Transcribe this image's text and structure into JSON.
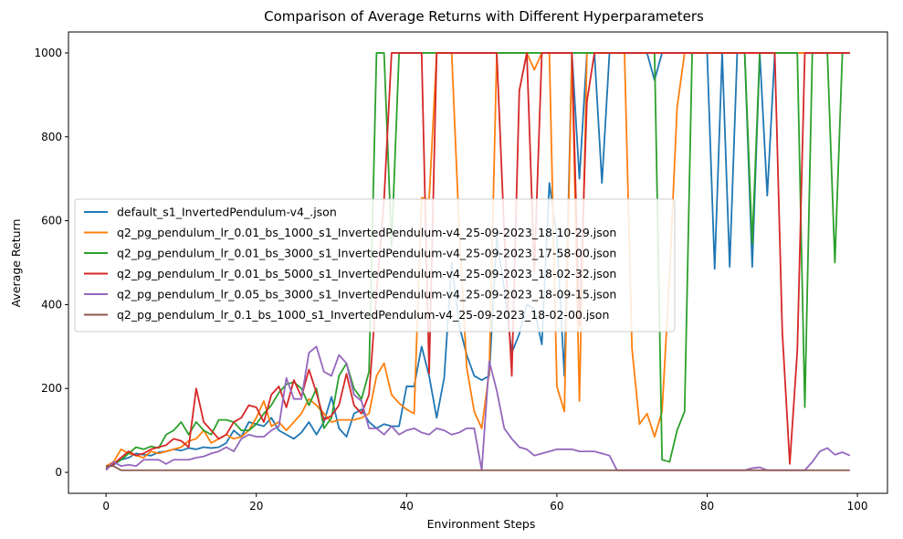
{
  "chart_data": {
    "type": "line",
    "title": "Comparison of Average Returns with Different Hyperparameters",
    "xlabel": "Environment Steps",
    "ylabel": "Average Return",
    "xlim": [
      -5,
      104
    ],
    "ylim": [
      -50,
      1050
    ],
    "xticks": [
      0,
      20,
      40,
      60,
      80,
      100
    ],
    "yticks": [
      0,
      200,
      400,
      600,
      800,
      1000
    ],
    "grid": false,
    "legend_position": "center-left",
    "colors": [
      "#1f77b4",
      "#ff7f0e",
      "#2ca02c",
      "#d62728",
      "#9467bd",
      "#8c564b"
    ],
    "series": [
      {
        "name": "default_s1_InvertedPendulum-v4_.json",
        "values": [
          12,
          18,
          30,
          35,
          45,
          42,
          40,
          48,
          50,
          55,
          52,
          58,
          55,
          60,
          58,
          60,
          70,
          100,
          85,
          120,
          115,
          110,
          130,
          100,
          90,
          80,
          95,
          120,
          90,
          120,
          180,
          105,
          85,
          140,
          150,
          120,
          105,
          115,
          110,
          110,
          205,
          205,
          300,
          230,
          130,
          225,
          500,
          350,
          280,
          230,
          220,
          230,
          560,
          435,
          285,
          330,
          400,
          390,
          305,
          690,
          560,
          230,
          1000,
          700,
          1000,
          1000,
          690,
          1000,
          1000,
          1000,
          1000,
          1000,
          1000,
          935,
          1000,
          1000,
          1000,
          1000,
          1000,
          1000,
          1000,
          485,
          1000,
          490,
          1000,
          1000,
          490,
          1000,
          660,
          1000,
          1000,
          1000,
          1000,
          1000,
          1000,
          1000,
          1000,
          1000,
          1000,
          1000
        ]
      },
      {
        "name": "q2_pg_pendulum_lr_0.01_bs_1000_s1_InvertedPendulum-v4_25-09-2023_18-10-29.json",
        "values": [
          15,
          25,
          55,
          45,
          40,
          35,
          50,
          45,
          50,
          55,
          60,
          75,
          80,
          100,
          70,
          80,
          90,
          80,
          85,
          100,
          130,
          170,
          110,
          120,
          100,
          120,
          140,
          175,
          160,
          140,
          120,
          125,
          125,
          125,
          130,
          140,
          230,
          260,
          185,
          165,
          150,
          140,
          655,
          650,
          1000,
          1000,
          1000,
          580,
          250,
          145,
          105,
          240,
          1000,
          1000,
          1000,
          1000,
          1000,
          960,
          1000,
          1000,
          205,
          145,
          1000,
          170,
          1000,
          1000,
          1000,
          1000,
          1000,
          1000,
          295,
          115,
          140,
          85,
          145,
          470,
          870,
          1000,
          1000,
          1000,
          1000,
          1000,
          1000,
          1000,
          1000,
          1000,
          1000,
          1000,
          1000,
          1000,
          1000,
          1000,
          1000,
          1000,
          1000,
          1000,
          1000,
          1000,
          1000,
          1000
        ]
      },
      {
        "name": "q2_pg_pendulum_lr_0.01_bs_3000_s1_InvertedPendulum-v4_25-09-2023_17-58-00.json",
        "values": [
          10,
          20,
          30,
          45,
          60,
          55,
          62,
          58,
          90,
          100,
          120,
          90,
          120,
          100,
          90,
          125,
          125,
          120,
          100,
          100,
          115,
          140,
          160,
          190,
          210,
          215,
          200,
          160,
          200,
          105,
          130,
          230,
          260,
          200,
          175,
          240,
          1000,
          1000,
          540,
          1000,
          1000,
          1000,
          1000,
          1000,
          1000,
          1000,
          1000,
          1000,
          1000,
          1000,
          1000,
          1000,
          1000,
          1000,
          1000,
          1000,
          1000,
          1000,
          1000,
          1000,
          1000,
          1000,
          1000,
          1000,
          1000,
          1000,
          1000,
          1000,
          1000,
          1000,
          1000,
          1000,
          1000,
          1000,
          30,
          25,
          100,
          145,
          1000,
          1000,
          1000,
          1000,
          1000,
          1000,
          1000,
          1000,
          545,
          1000,
          1000,
          1000,
          1000,
          1000,
          1000,
          155,
          1000,
          1000,
          1000,
          500,
          1000,
          1000
        ]
      },
      {
        "name": "q2_pg_pendulum_lr_0.01_bs_5000_s1_InvertedPendulum-v4_25-09-2023_18-02-32.json",
        "values": [
          8,
          20,
          35,
          50,
          40,
          45,
          55,
          60,
          65,
          80,
          75,
          60,
          200,
          120,
          100,
          80,
          90,
          120,
          130,
          160,
          155,
          120,
          185,
          205,
          155,
          220,
          180,
          245,
          190,
          125,
          135,
          160,
          235,
          160,
          140,
          185,
          430,
          650,
          1000,
          1000,
          1000,
          1000,
          1000,
          235,
          1000,
          1000,
          1000,
          1000,
          1000,
          1000,
          1000,
          1000,
          1000,
          570,
          230,
          910,
          1000,
          480,
          1000,
          1000,
          1000,
          1000,
          1000,
          350,
          885,
          1000,
          1000,
          1000,
          1000,
          1000,
          1000,
          1000,
          1000,
          1000,
          1000,
          1000,
          1000,
          1000,
          1000,
          1000,
          1000,
          1000,
          1000,
          1000,
          1000,
          1000,
          1000,
          1000,
          1000,
          1000,
          335,
          20,
          290,
          1000,
          1000,
          1000,
          1000,
          1000,
          1000,
          1000
        ]
      },
      {
        "name": "q2_pg_pendulum_lr_0.05_bs_3000_s1_InvertedPendulum-v4_25-09-2023_18-09-15.json",
        "values": [
          5,
          25,
          15,
          18,
          15,
          30,
          30,
          30,
          20,
          30,
          30,
          30,
          35,
          38,
          45,
          50,
          60,
          50,
          80,
          90,
          85,
          85,
          100,
          110,
          225,
          175,
          175,
          285,
          300,
          240,
          230,
          280,
          260,
          185,
          170,
          105,
          105,
          90,
          110,
          90,
          100,
          105,
          95,
          90,
          105,
          100,
          90,
          95,
          105,
          105,
          5,
          265,
          195,
          105,
          80,
          60,
          55,
          40,
          45,
          50,
          55,
          55,
          55,
          50,
          50,
          50,
          45,
          40,
          5,
          5,
          5,
          5,
          5,
          5,
          5,
          5,
          5,
          5,
          5,
          5,
          5,
          5,
          5,
          5,
          5,
          5,
          10,
          12,
          5,
          5,
          5,
          5,
          5,
          5,
          25,
          50,
          58,
          42,
          48,
          40
        ]
      },
      {
        "name": "q2_pg_pendulum_lr_0.1_bs_1000_s1_InvertedPendulum-v4_25-09-2023_18-02-00.json",
        "values": [
          15,
          15,
          5,
          5,
          5,
          5,
          5,
          5,
          5,
          5,
          5,
          5,
          5,
          5,
          5,
          5,
          5,
          5,
          5,
          5,
          5,
          5,
          5,
          5,
          5,
          5,
          5,
          5,
          5,
          5,
          5,
          5,
          5,
          5,
          5,
          5,
          5,
          5,
          5,
          5,
          5,
          5,
          5,
          5,
          5,
          5,
          5,
          5,
          5,
          5,
          5,
          5,
          5,
          5,
          5,
          5,
          5,
          5,
          5,
          5,
          5,
          5,
          5,
          5,
          5,
          5,
          5,
          5,
          5,
          5,
          5,
          5,
          5,
          5,
          5,
          5,
          5,
          5,
          5,
          5,
          5,
          5,
          5,
          5,
          5,
          5,
          5,
          5,
          5,
          5,
          5,
          5,
          5,
          5,
          5,
          5,
          5,
          5,
          5,
          5
        ]
      }
    ]
  }
}
